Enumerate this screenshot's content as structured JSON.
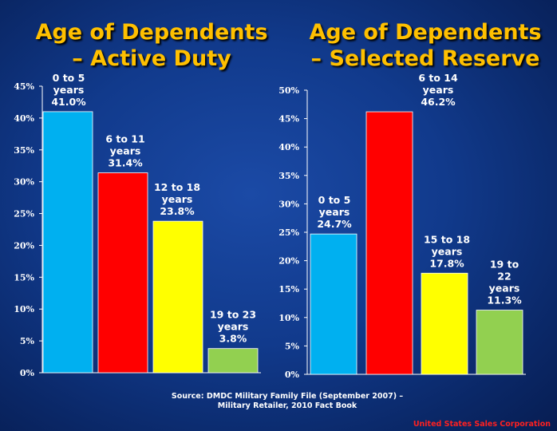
{
  "chart_data": [
    {
      "type": "bar",
      "title": "Age of Dependents – Active Duty",
      "title_lines": [
        "Age of Dependents",
        "– Active Duty"
      ],
      "categories": [
        "0 to 5 years",
        "6 to 11 years",
        "12 to 18 years",
        "19 to 23 years"
      ],
      "values": [
        41.0,
        31.4,
        23.8,
        3.8
      ],
      "data_labels": [
        [
          "0 to 5",
          "years",
          "41.0%"
        ],
        [
          "6 to 11",
          "years",
          "31.4%"
        ],
        [
          "12 to 18",
          "years",
          "23.8%"
        ],
        [
          "19 to 23",
          "years",
          "3.8%"
        ]
      ],
      "colors": [
        "#00b0f0",
        "#ff0000",
        "#ffff00",
        "#92d050"
      ],
      "ylim": [
        0,
        45
      ],
      "yticks": [
        "0%",
        "5%",
        "10%",
        "15%",
        "20%",
        "25%",
        "30%",
        "35%",
        "40%",
        "45%"
      ],
      "grid": false
    },
    {
      "type": "bar",
      "title": "Age of Dependents – Selected Reserve",
      "title_lines": [
        "Age of Dependents",
        "– Selected Reserve"
      ],
      "categories": [
        "0 to 5 years",
        "6 to 14 years",
        "15 to 18 years",
        "19 to 22 years"
      ],
      "values": [
        24.7,
        46.2,
        17.8,
        11.3
      ],
      "data_labels": [
        [
          "0 to 5",
          "years",
          "24.7%"
        ],
        [
          "6 to 14",
          "years",
          "46.2%"
        ],
        [
          "15 to 18",
          "years",
          "17.8%"
        ],
        [
          "19 to",
          "22",
          "years",
          "11.3%"
        ]
      ],
      "colors": [
        "#00b0f0",
        "#ff0000",
        "#ffff00",
        "#92d050"
      ],
      "ylim": [
        0,
        50
      ],
      "yticks": [
        "0%",
        "5%",
        "10%",
        "15%",
        "20%",
        "25%",
        "30%",
        "35%",
        "40%",
        "45%",
        "50%"
      ],
      "grid": false
    }
  ],
  "source_lines": [
    "Source: DMDC Military Family File (September 2007) –",
    "Military Retailer, 2010 Fact Book"
  ],
  "corporation": "United States Sales Corporation",
  "colors": {
    "title": "#ffc000",
    "text": "#ffffff",
    "corporation": "#ff2020",
    "background": "#113a8c"
  }
}
